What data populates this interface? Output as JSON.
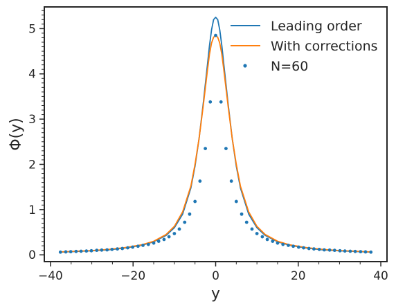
{
  "chart_data": {
    "type": "line",
    "title": "",
    "xlabel": "y",
    "ylabel": "Φ(y)",
    "xlim": [
      -41.5,
      41.5
    ],
    "ylim": [
      -0.15,
      5.48
    ],
    "xticks": [
      -40,
      -20,
      0,
      20,
      40
    ],
    "xtick_labels": [
      "−40",
      "−20",
      "0",
      "20",
      "40"
    ],
    "yticks": [
      0,
      1,
      2,
      3,
      4,
      5
    ],
    "ytick_labels": [
      "0",
      "1",
      "2",
      "3",
      "4",
      "5"
    ],
    "grid": false,
    "legend_position": "top-right",
    "series": [
      {
        "name": "Leading order",
        "kind": "line",
        "color": "#1f77b4",
        "x": [
          -37.5,
          -34,
          -30,
          -26,
          -22,
          -18,
          -15,
          -12,
          -10,
          -8,
          -6,
          -5,
          -4,
          -3,
          -2,
          -1.5,
          -1,
          -0.5,
          0,
          0.5,
          1,
          1.5,
          2,
          3,
          4,
          5,
          6,
          8,
          10,
          12,
          15,
          18,
          22,
          26,
          30,
          34,
          37.5
        ],
        "y": [
          0.06,
          0.075,
          0.09,
          0.11,
          0.15,
          0.21,
          0.29,
          0.43,
          0.6,
          0.9,
          1.48,
          1.96,
          2.58,
          3.35,
          4.19,
          4.62,
          4.97,
          5.2,
          5.25,
          5.2,
          4.97,
          4.62,
          4.19,
          3.35,
          2.58,
          1.96,
          1.48,
          0.9,
          0.6,
          0.43,
          0.29,
          0.21,
          0.15,
          0.11,
          0.09,
          0.075,
          0.06
        ]
      },
      {
        "name": "With corrections",
        "kind": "line",
        "color": "#ff7f0e",
        "x": [
          -37.5,
          -34,
          -30,
          -26,
          -22,
          -18,
          -15,
          -12,
          -10,
          -8,
          -6,
          -5,
          -4,
          -3,
          -2,
          -1.5,
          -1,
          -0.5,
          0,
          0.5,
          1,
          1.5,
          2,
          3,
          4,
          5,
          6,
          8,
          10,
          12,
          15,
          18,
          22,
          26,
          30,
          34,
          37.5
        ],
        "y": [
          0.065,
          0.08,
          0.095,
          0.12,
          0.16,
          0.22,
          0.3,
          0.45,
          0.63,
          0.95,
          1.52,
          2.0,
          2.58,
          3.3,
          4.07,
          4.43,
          4.68,
          4.81,
          4.85,
          4.81,
          4.68,
          4.43,
          4.07,
          3.3,
          2.58,
          2.0,
          1.52,
          0.95,
          0.63,
          0.45,
          0.3,
          0.22,
          0.16,
          0.12,
          0.095,
          0.08,
          0.065
        ]
      },
      {
        "name": "N=60",
        "kind": "scatter",
        "color": "#1f77b4",
        "x": [
          -37.6,
          -36.3,
          -35.1,
          -33.8,
          -32.6,
          -31.3,
          -30.1,
          -28.8,
          -27.6,
          -26.3,
          -25.1,
          -23.8,
          -22.6,
          -21.3,
          -20.1,
          -18.8,
          -17.6,
          -16.3,
          -15.0,
          -13.8,
          -12.5,
          -11.3,
          -10.0,
          -8.8,
          -7.5,
          -6.3,
          -5.0,
          -3.8,
          -2.5,
          -1.3,
          0.0,
          1.3,
          2.5,
          3.8,
          5.0,
          6.3,
          7.5,
          8.8,
          10.0,
          11.3,
          12.5,
          13.8,
          15.0,
          16.3,
          17.6,
          18.8,
          20.1,
          21.3,
          22.6,
          23.8,
          25.1,
          26.3,
          27.6,
          28.8,
          30.1,
          31.3,
          32.6,
          33.8,
          35.1,
          36.3,
          37.6
        ],
        "y": [
          0.06,
          0.065,
          0.07,
          0.075,
          0.08,
          0.085,
          0.09,
          0.1,
          0.105,
          0.11,
          0.12,
          0.13,
          0.14,
          0.155,
          0.17,
          0.19,
          0.21,
          0.23,
          0.26,
          0.3,
          0.34,
          0.4,
          0.47,
          0.57,
          0.72,
          0.9,
          1.18,
          1.63,
          2.35,
          3.38,
          4.85,
          3.38,
          2.35,
          1.63,
          1.18,
          0.9,
          0.72,
          0.57,
          0.47,
          0.4,
          0.34,
          0.3,
          0.26,
          0.23,
          0.21,
          0.19,
          0.17,
          0.155,
          0.14,
          0.13,
          0.12,
          0.11,
          0.105,
          0.1,
          0.09,
          0.085,
          0.08,
          0.075,
          0.07,
          0.065,
          0.06
        ]
      }
    ]
  }
}
